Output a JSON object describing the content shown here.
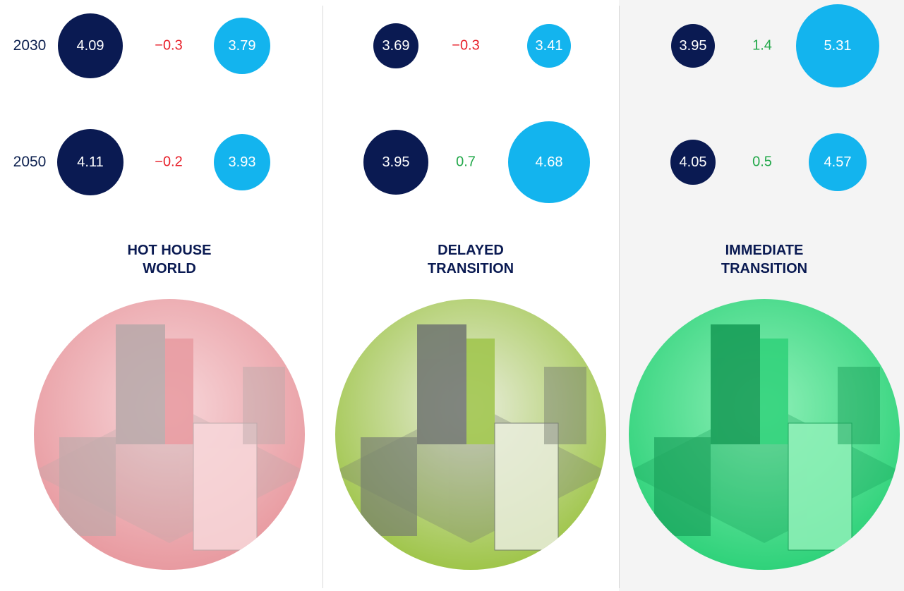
{
  "years": [
    "2030",
    "2050"
  ],
  "panels": [
    {
      "title_lines": [
        "HOT HOUSE",
        "WORLD"
      ],
      "rows": [
        {
          "left": "4.09",
          "change": "−0.3",
          "change_color": "#e8202a",
          "right": "3.79"
        },
        {
          "left": "4.11",
          "change": "−0.2",
          "change_color": "#e8202a",
          "right": "3.93"
        }
      ]
    },
    {
      "title_lines": [
        "DELAYED",
        "TRANSITION"
      ],
      "rows": [
        {
          "left": "3.69",
          "change": "−0.3",
          "change_color": "#e8202a",
          "right": "3.41"
        },
        {
          "left": "3.95",
          "change": "0.7",
          "change_color": "#22a84a",
          "right": "4.68"
        }
      ]
    },
    {
      "title_lines": [
        "IMMEDIATE",
        "TRANSITION"
      ],
      "rows": [
        {
          "left": "3.95",
          "change": "1.4",
          "change_color": "#22a84a",
          "right": "5.31"
        },
        {
          "left": "4.05",
          "change": "0.5",
          "change_color": "#22a84a",
          "right": "4.57"
        }
      ]
    }
  ]
}
